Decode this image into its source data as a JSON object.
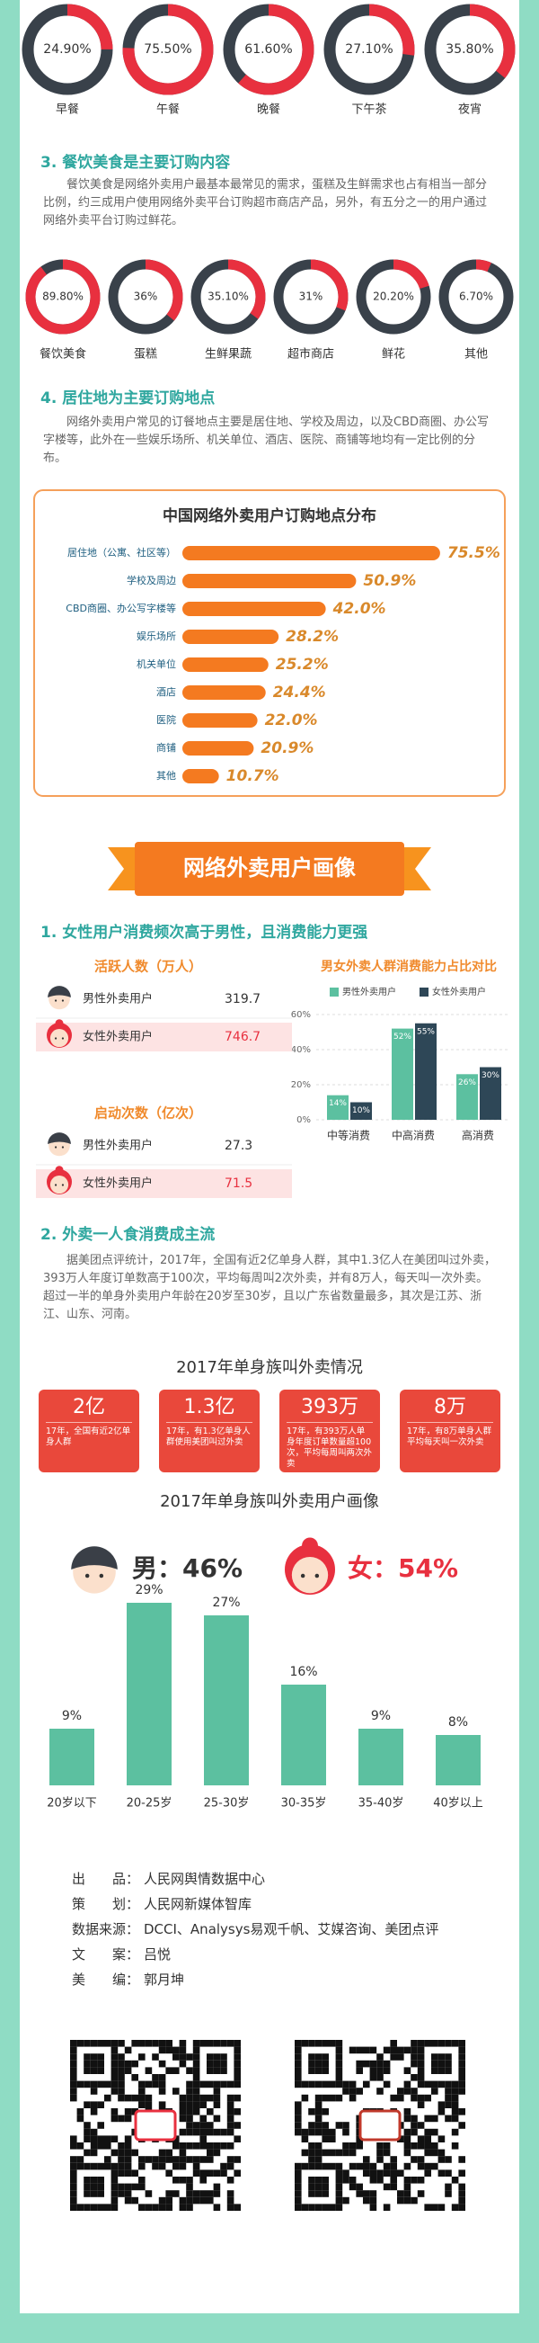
{
  "chart_data": [
    {
      "type": "donut",
      "categories": [
        "早餐",
        "午餐",
        "晚餐",
        "下午茶",
        "夜宵"
      ],
      "values": [
        24.9,
        75.5,
        61.6,
        27.1,
        35.8
      ],
      "value_labels": [
        "24.90%",
        "75.50%",
        "61.60%",
        "27.10%",
        "35.80%"
      ],
      "color": "#e8303f",
      "track_color": "#39414a"
    },
    {
      "type": "donut",
      "categories": [
        "餐饮美食",
        "蛋糕",
        "生鲜果蔬",
        "超市商店",
        "鲜花",
        "其他"
      ],
      "values": [
        89.8,
        36,
        35.1,
        31,
        20.2,
        6.7
      ],
      "value_labels": [
        "89.80%",
        "36%",
        "35.10%",
        "31%",
        "20.20%",
        "6.70%"
      ],
      "color": "#e8303f",
      "track_color": "#39414a"
    },
    {
      "type": "bar",
      "orientation": "horizontal",
      "title": "中国网络外卖用户订购地点分布",
      "categories": [
        "居住地（公寓、社区等）",
        "学校及周边",
        "CBD商圈、办公写字楼等",
        "娱乐场所",
        "机关单位",
        "酒店",
        "医院",
        "商铺",
        "其他"
      ],
      "values": [
        75.5,
        50.9,
        42.0,
        28.2,
        25.2,
        24.4,
        22.0,
        20.9,
        10.7
      ],
      "value_labels": [
        "75.5%",
        "50.9%",
        "42.0%",
        "28.2%",
        "25.2%",
        "24.4%",
        "22.0%",
        "20.9%",
        "10.7%"
      ],
      "color": "#f47a20"
    },
    {
      "type": "bar",
      "title": "男女外卖人群消费能力占比对比",
      "categories": [
        "中等消费",
        "中高消费",
        "高消费"
      ],
      "series": [
        {
          "name": "男性外卖用户",
          "color": "#5cc0a0",
          "values": [
            14,
            52,
            26
          ],
          "value_labels": [
            "14%",
            "52%",
            "26%"
          ]
        },
        {
          "name": "女性外卖用户",
          "color": "#2e4757",
          "values": [
            10,
            55,
            30
          ],
          "value_labels": [
            "10%",
            "55%",
            "30%"
          ]
        }
      ],
      "ylim": [
        0,
        60
      ],
      "yticks": [
        {
          "value": 0,
          "label": "0%"
        },
        {
          "value": 20,
          "label": "20%"
        },
        {
          "value": 40,
          "label": "40%"
        },
        {
          "value": 60,
          "label": "60%"
        }
      ],
      "grid": true
    },
    {
      "type": "bar",
      "title": "2017年单身族叫外卖用户画像",
      "annotations": [
        "男：46%",
        "女：54%"
      ],
      "categories": [
        "20岁以下",
        "20-25岁",
        "25-30岁",
        "30-35岁",
        "35-40岁",
        "40岁以上"
      ],
      "values": [
        9,
        29,
        27,
        16,
        9,
        8
      ],
      "value_labels": [
        "9%",
        "29%",
        "27%",
        "16%",
        "9%",
        "8%"
      ],
      "color": "#5cc0a0"
    }
  ],
  "sections": {
    "dining": {
      "heading": "3. 餐饮美食是主要订购内容",
      "text": "餐饮美食是网络外卖用户最基本最常见的需求，蛋糕及生鲜需求也占有相当一部分比例，约三成用户使用网络外卖平台订购超市商店产品，另外，有五分之一的用户通过网络外卖平台订购过鲜花。"
    },
    "location": {
      "heading": "4. 居住地为主要订购地点",
      "text": "网络外卖用户常见的订餐地点主要是居住地、学校及周边，以及CBD商圈、办公写字楼等，此外在一些娱乐场所、机关单位、酒店、医院、商铺等地均有一定比例的分布。"
    },
    "banner": "网络外卖用户画像",
    "gender": {
      "heading": "1. 女性用户消费频次高于男性，且消费能力更强",
      "stats": [
        {
          "title": "活跃人数（万人）",
          "rows": [
            {
              "label": "男性外卖用户",
              "value": 319.7
            },
            {
              "label": "女性外卖用户",
              "value": 746.7
            }
          ]
        },
        {
          "title": "启动次数（亿次）",
          "rows": [
            {
              "label": "男性外卖用户",
              "value": 27.3
            },
            {
              "label": "女性外卖用户",
              "value": 71.5
            }
          ]
        }
      ]
    },
    "single": {
      "heading": "2. 外卖一人食消费成主流",
      "text": "据美团点评统计，2017年，全国有近2亿单身人群，其中1.3亿人在美团叫过外卖，393万人年度订单数高于100次，平均每周叫2次外卖，并有8万人，每天叫一次外卖。超过一半的单身外卖用户年龄在20岁至30岁，且以广东省数量最多，其次是江苏、浙江、山东、河南。",
      "subtitle": "2017年单身族叫外卖情况",
      "cards": [
        {
          "value": "2亿",
          "text": "17年，全国有近2亿单身人群"
        },
        {
          "value": "1.3亿",
          "text": "17年，有1.3亿单身人群使用美团叫过外卖"
        },
        {
          "value": "393万",
          "text": "17年，有393万人单身年度订单数量超100次，平均每周叫两次外卖"
        },
        {
          "value": "8万",
          "text": "17年，有8万单身人群平均每天叫一次外卖"
        }
      ]
    }
  },
  "credits": [
    {
      "label": "出　　品：",
      "text": "人民网舆情数据中心"
    },
    {
      "label": "策　　划：",
      "text": "人民网新媒体智库"
    },
    {
      "label": "数据来源：",
      "text": "DCCI、Analysys易观千帆、艾媒咨询、美团点评"
    },
    {
      "label": "文　　案：",
      "text": "吕悦"
    },
    {
      "label": "美　　编：",
      "text": "郭月坤"
    }
  ]
}
